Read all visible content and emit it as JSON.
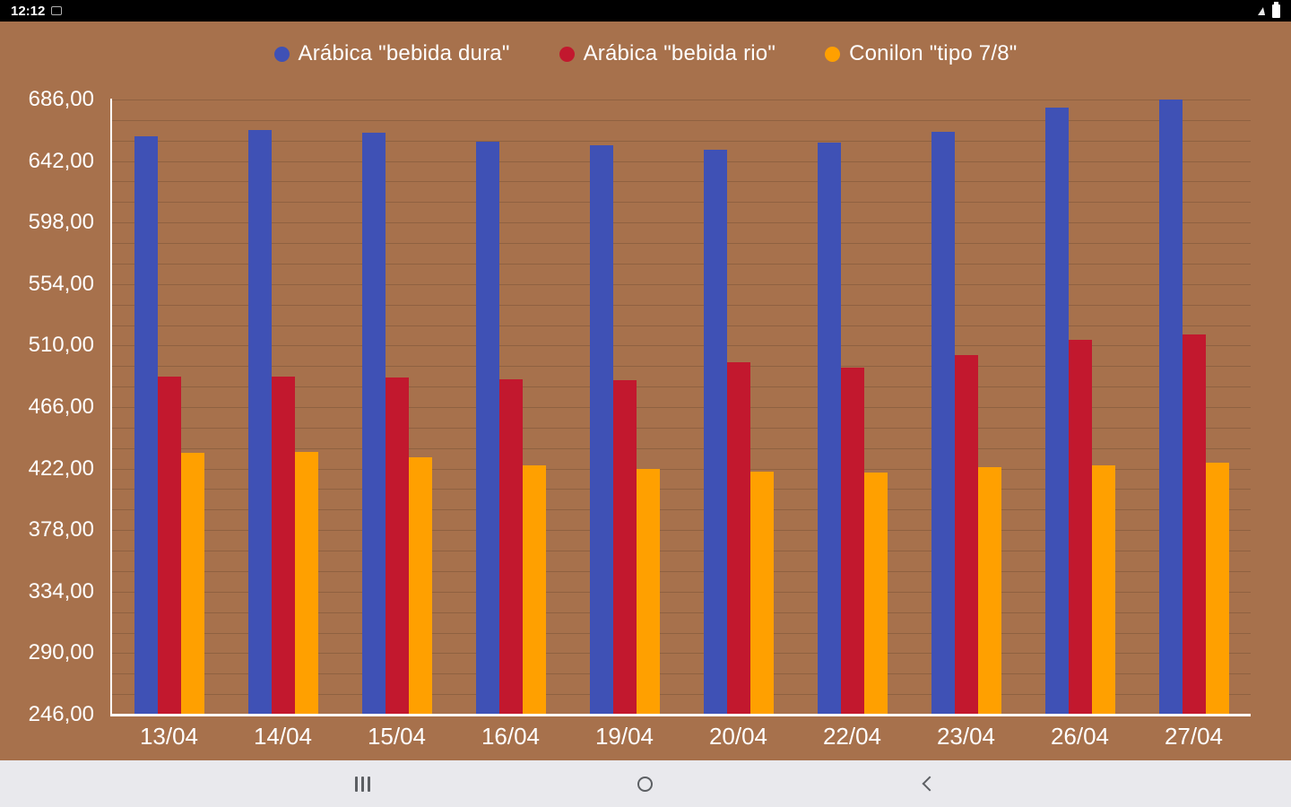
{
  "status_bar": {
    "time": "12:12",
    "icons": [
      "notification-icon",
      "charging-icon",
      "battery-icon"
    ]
  },
  "nav_bar": {
    "buttons": [
      "recents",
      "home",
      "back"
    ]
  },
  "colors": {
    "background": "#a7714c",
    "axis": "#ffffff",
    "text": "#ffffff",
    "gridline": "rgba(0,0,0,0.14)"
  },
  "chart_data": {
    "type": "bar",
    "title": "",
    "xlabel": "",
    "ylabel": "",
    "legend_position": "top",
    "grid": true,
    "ylim": [
      246,
      686
    ],
    "y_ticks": [
      "686,00",
      "642,00",
      "598,00",
      "554,00",
      "510,00",
      "466,00",
      "422,00",
      "378,00",
      "334,00",
      "290,00",
      "246,00"
    ],
    "categories": [
      "13/04",
      "14/04",
      "15/04",
      "16/04",
      "19/04",
      "20/04",
      "22/04",
      "23/04",
      "26/04",
      "27/04"
    ],
    "series": [
      {
        "name": "Arábica \"bebida dura\"",
        "color": "#3f51b5",
        "values": [
          660,
          664,
          662,
          656,
          653,
          650,
          655,
          663,
          680,
          686
        ]
      },
      {
        "name": "Arábica \"bebida rio\"",
        "color": "#c2182e",
        "values": [
          488,
          488,
          487,
          486,
          485,
          498,
          494,
          503,
          514,
          518
        ]
      },
      {
        "name": "Conilon \"tipo 7/8\"",
        "color": "#ffa000",
        "values": [
          433,
          434,
          430,
          424,
          422,
          420,
          419,
          423,
          424,
          426
        ]
      }
    ]
  }
}
